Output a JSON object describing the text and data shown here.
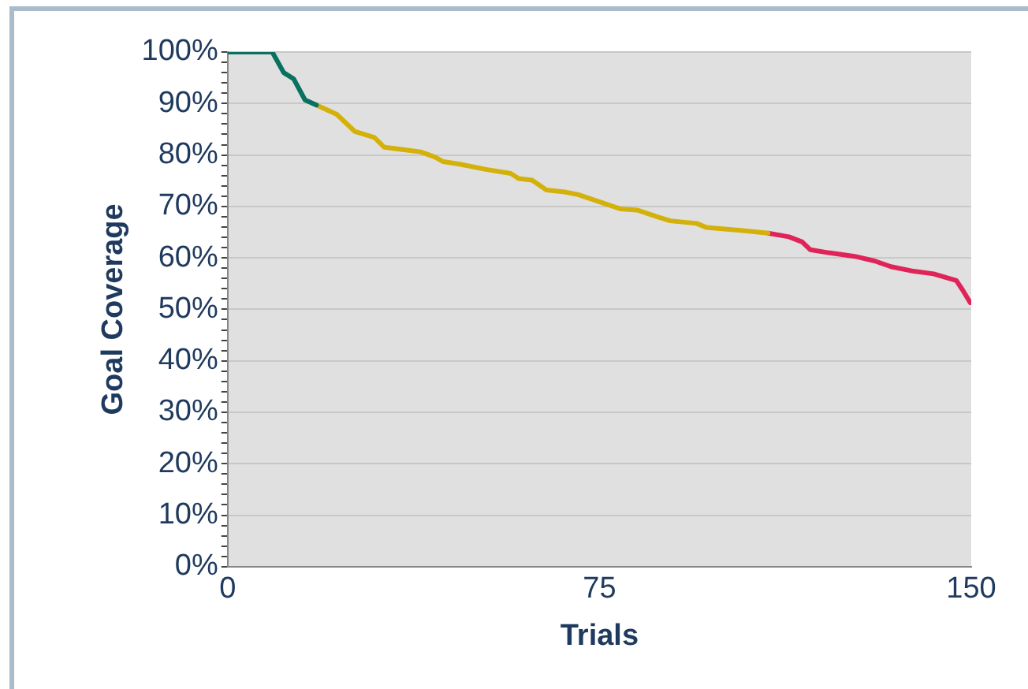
{
  "chart_data": {
    "type": "line",
    "xlabel": "Trials",
    "ylabel": "Goal Coverage",
    "xlim": [
      0,
      150
    ],
    "xticks": [
      0,
      75,
      150
    ],
    "ylim": [
      0,
      100
    ],
    "yticks": [
      {
        "value": 0,
        "label": "0%"
      },
      {
        "value": 2,
        "label": null
      },
      {
        "value": 4,
        "label": null
      },
      {
        "value": 6,
        "label": null
      },
      {
        "value": 8,
        "label": null
      },
      {
        "value": 10,
        "label": "10%"
      },
      {
        "value": 12,
        "label": null
      },
      {
        "value": 14,
        "label": null
      },
      {
        "value": 16,
        "label": null
      },
      {
        "value": 18,
        "label": null
      },
      {
        "value": 20,
        "label": "20%"
      },
      {
        "value": 22,
        "label": null
      },
      {
        "value": 24,
        "label": null
      },
      {
        "value": 26,
        "label": null
      },
      {
        "value": 28,
        "label": null
      },
      {
        "value": 30,
        "label": "30%"
      },
      {
        "value": 32,
        "label": null
      },
      {
        "value": 34,
        "label": null
      },
      {
        "value": 36,
        "label": null
      },
      {
        "value": 38,
        "label": null
      },
      {
        "value": 40,
        "label": "40%"
      },
      {
        "value": 42,
        "label": null
      },
      {
        "value": 44,
        "label": null
      },
      {
        "value": 46,
        "label": null
      },
      {
        "value": 48,
        "label": null
      },
      {
        "value": 50,
        "label": "50%"
      },
      {
        "value": 52,
        "label": null
      },
      {
        "value": 54,
        "label": null
      },
      {
        "value": 56,
        "label": null
      },
      {
        "value": 58,
        "label": null
      },
      {
        "value": 60,
        "label": "60%"
      },
      {
        "value": 62,
        "label": null
      },
      {
        "value": 64,
        "label": null
      },
      {
        "value": 66,
        "label": null
      },
      {
        "value": 68,
        "label": null
      },
      {
        "value": 70,
        "label": "70%"
      },
      {
        "value": 72,
        "label": null
      },
      {
        "value": 74,
        "label": null
      },
      {
        "value": 76,
        "label": null
      },
      {
        "value": 78,
        "label": null
      },
      {
        "value": 80,
        "label": "80%"
      },
      {
        "value": 82,
        "label": null
      },
      {
        "value": 84,
        "label": null
      },
      {
        "value": 86,
        "label": null
      },
      {
        "value": 88,
        "label": null
      },
      {
        "value": 90,
        "label": "90%"
      },
      {
        "value": 92,
        "label": null
      },
      {
        "value": 94,
        "label": null
      },
      {
        "value": 96,
        "label": null
      },
      {
        "value": 98,
        "label": null
      },
      {
        "value": 100,
        "label": "100%"
      }
    ],
    "grid": "y",
    "marker": "none",
    "line_style": "solid",
    "series": [
      {
        "color": "#0a7060",
        "x": [
          0,
          9,
          11.3,
          13.3,
          15.6,
          17.9
        ],
        "values": [
          100,
          100,
          96,
          94.8,
          90.7,
          89.7
        ]
      },
      {
        "color": "#d4b10a",
        "x": [
          17.9,
          22,
          25.6,
          29.6,
          31.6,
          38.9,
          41.8,
          43.5,
          46.8,
          52.1,
          57.1,
          58.7,
          61.4,
          64.3,
          68,
          70.7,
          75.3,
          79.3,
          82.6,
          86.6,
          89.3,
          94.6,
          96.6,
          103.9,
          109
        ],
        "values": [
          89.7,
          87.9,
          84.6,
          83.4,
          81.5,
          80.6,
          79.6,
          78.7,
          78.2,
          77.2,
          76.4,
          75.4,
          75.1,
          73.2,
          72.8,
          72.3,
          70.8,
          69.5,
          69.3,
          68,
          67.2,
          66.7,
          65.9,
          65.3,
          64.8
        ]
      },
      {
        "color": "#e0245a",
        "x": [
          109,
          113.2,
          115.9,
          117.5,
          121.2,
          126.5,
          130.5,
          133.8,
          138.4,
          142.4,
          147,
          148.3,
          149.8
        ],
        "values": [
          64.8,
          64.1,
          63.1,
          61.6,
          61,
          60.3,
          59.4,
          58.3,
          57.4,
          56.9,
          55.6,
          53.7,
          51.3
        ]
      }
    ]
  }
}
